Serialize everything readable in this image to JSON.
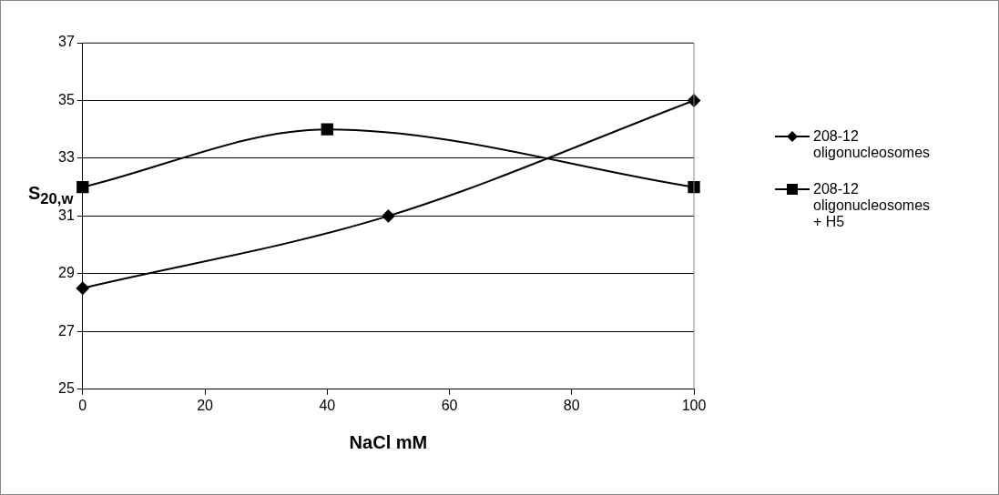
{
  "chart_data": {
    "type": "line",
    "xlabel": "NaCl mM",
    "ylabel": "S$_{20,w}$",
    "xlim": [
      0,
      100
    ],
    "xticks": [
      0,
      20,
      40,
      60,
      80,
      100
    ],
    "ylim": [
      25,
      37
    ],
    "yticks": [
      25,
      27,
      29,
      31,
      33,
      35,
      37
    ],
    "grid": "y",
    "legend": "right",
    "series": [
      {
        "name": "208-12 oligonucleosomes",
        "color": "#000000",
        "marker": "diamond",
        "x": [
          0,
          50,
          100
        ],
        "values": [
          28.5,
          31,
          35
        ]
      },
      {
        "name": "208-12 oligonucleosomes + H5",
        "color": "#000000",
        "marker": "square",
        "x": [
          0,
          40,
          100
        ],
        "values": [
          32,
          34,
          32
        ]
      }
    ]
  }
}
